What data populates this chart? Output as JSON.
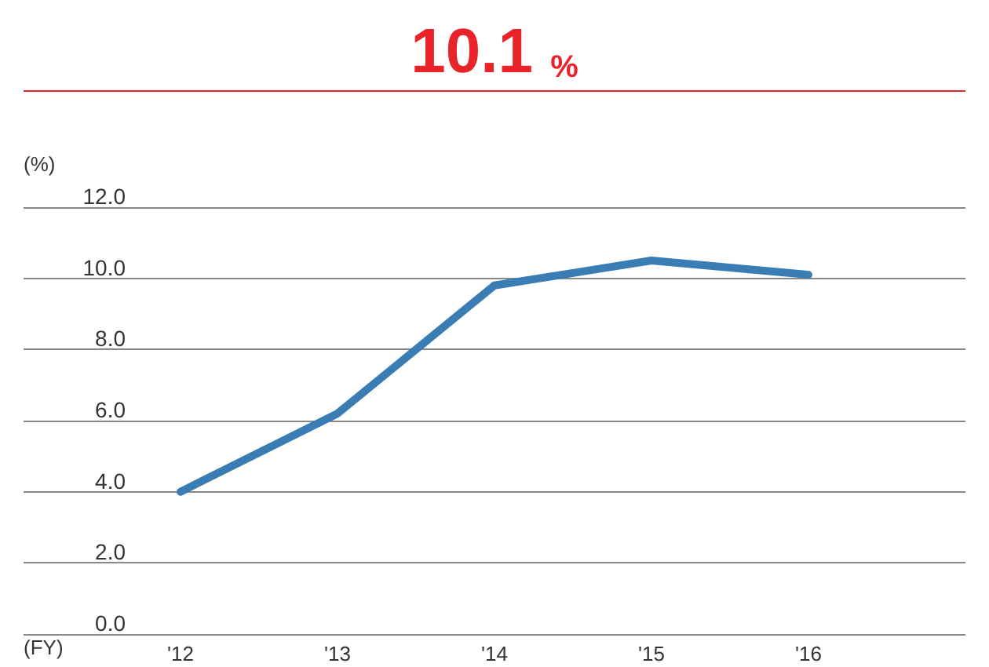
{
  "chart_data": {
    "type": "line",
    "title": "10.1 %",
    "ylabel": "(%)",
    "xlabel": "(FY)",
    "categories": [
      "'12",
      "'13",
      "'14",
      "'15",
      "'16"
    ],
    "series": [
      {
        "color": "#3a7db5",
        "values": [
          4.0,
          6.2,
          9.8,
          10.5,
          10.1
        ]
      }
    ],
    "ylim": [
      0,
      12
    ],
    "yticks": [
      {
        "value": 0,
        "label": "0.0"
      },
      {
        "value": 2,
        "label": "2.0"
      },
      {
        "value": 4,
        "label": "4.0"
      },
      {
        "value": 6,
        "label": "6.0"
      },
      {
        "value": 8,
        "label": "8.0"
      },
      {
        "value": 10,
        "label": "10.0"
      },
      {
        "value": 12,
        "label": "12.0"
      }
    ],
    "grid": "y",
    "marker": "none",
    "line_style": "solid"
  }
}
